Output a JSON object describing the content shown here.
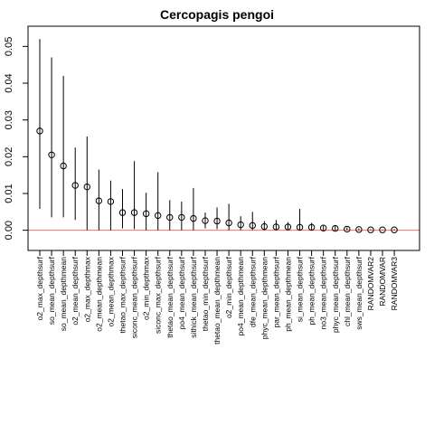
{
  "chart_data": {
    "type": "scatter",
    "title": "Cercopagis pengoi",
    "xlabel": "",
    "ylabel": "",
    "ylim": [
      -0.0055,
      0.0555
    ],
    "yticks": [
      0.0,
      0.01,
      0.02,
      0.03,
      0.04,
      0.05
    ],
    "ytick_labels": [
      "0.00",
      "0.01",
      "0.02",
      "0.03",
      "0.04",
      "0.05"
    ],
    "reference_line": {
      "y": 0.0,
      "color": "#ff6b6b"
    },
    "point_color": "#000000",
    "grid": false,
    "categories": [
      "o2_max_depthsurf",
      "so_mean_depthsurf",
      "so_mean_depthmean",
      "o2_mean_depthsurf",
      "o2_max_depthmax",
      "o2_mean_depthmean",
      "o2_mean_depthmax",
      "thetao_max_depthsurf",
      "siconc_mean_depthsurf",
      "o2_min_depthmax",
      "siconc_max_depthsurf",
      "thetao_mean_depthsurf",
      "po4_mean_depthsurf",
      "sithick_mean_depthsurf",
      "thetao_min_depthsurf",
      "thetao_mean_depthmean",
      "o2_min_depthsurf",
      "po4_mean_depthmean",
      "dfe_mean_depthsurf",
      "phyc_mean_depthmean",
      "par_mean_depthsurf",
      "ph_mean_depthmean",
      "si_mean_depthsurf",
      "ph_mean_depthsurf",
      "no3_mean_depthsurf",
      "phyc_mean_depthsurf",
      "chl_mean_depthsurf",
      "sws_mean_depthsurf",
      "RANDOMVAR2",
      "RANDOMVAR",
      "RANDOMVAR3"
    ],
    "values": [
      0.027,
      0.0205,
      0.0175,
      0.0122,
      0.0118,
      0.008,
      0.0078,
      0.0048,
      0.0048,
      0.0045,
      0.004,
      0.0035,
      0.0035,
      0.0032,
      0.0026,
      0.0025,
      0.002,
      0.0015,
      0.0013,
      0.001,
      0.0009,
      0.0009,
      0.0008,
      0.0008,
      0.0006,
      0.0005,
      0.0003,
      0.0002,
      0.0001,
      0.0001,
      0.0001
    ],
    "upper": [
      0.052,
      0.047,
      0.042,
      0.0225,
      0.0255,
      0.0165,
      0.0135,
      0.0112,
      0.0188,
      0.0102,
      0.0158,
      0.0082,
      0.0078,
      0.0115,
      0.0048,
      0.0062,
      0.0072,
      0.0038,
      0.005,
      0.0025,
      0.0028,
      0.0022,
      0.0058,
      0.002,
      0.0012,
      0.0012,
      0.0008,
      0.0005,
      0.0003,
      0.0002,
      0.0003
    ],
    "lower": [
      0.0058,
      0.0035,
      0.0035,
      0.0028,
      0.0,
      0.0,
      0.0,
      0.0005,
      0.0003,
      0.0,
      0.0,
      0.0,
      0.0,
      0.0,
      0.0005,
      0.0003,
      0.0,
      0.0,
      0.0,
      0.0,
      0.0,
      0.0,
      0.0,
      0.0,
      0.0,
      0.0,
      0.0,
      0.0,
      0.0,
      0.0,
      0.0
    ]
  }
}
